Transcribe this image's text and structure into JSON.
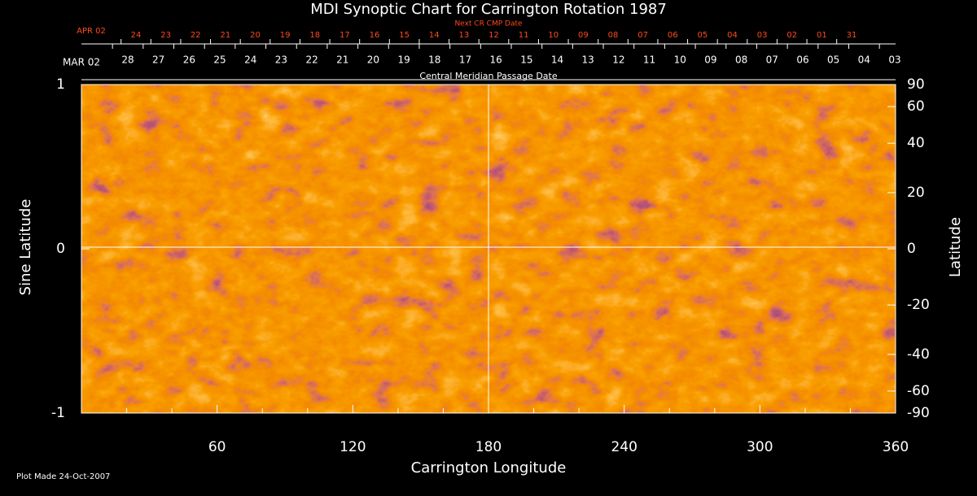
{
  "chart_data": {
    "type": "heatmap",
    "title": "MDI Synoptic Chart for Carrington Rotation 1987",
    "next_cmp_label": "Next CR CMP Date",
    "next_cmp_start": "APR 02",
    "next_cmp_dates": [
      "24",
      "23",
      "22",
      "21",
      "20",
      "19",
      "18",
      "17",
      "16",
      "15",
      "14",
      "13",
      "12",
      "11",
      "10",
      "09",
      "08",
      "07",
      "06",
      "05",
      "04",
      "03",
      "02",
      "01",
      "31"
    ],
    "next_cmp_color": "#ff4a1a",
    "cmp_label": "Central Meridian Passage Date",
    "cmp_start": "MAR 02",
    "cmp_dates": [
      "28",
      "27",
      "26",
      "25",
      "24",
      "23",
      "22",
      "21",
      "20",
      "19",
      "18",
      "17",
      "16",
      "15",
      "14",
      "13",
      "12",
      "11",
      "10",
      "09",
      "08",
      "07",
      "06",
      "05",
      "04",
      "03"
    ],
    "xlabel": "Carrington Longitude",
    "xlim": [
      0,
      360
    ],
    "xticks": [
      60,
      120,
      180,
      240,
      300,
      360
    ],
    "ylabel": "Sine Latitude",
    "ylim": [
      -1,
      1
    ],
    "yticks": [
      -1,
      0,
      1
    ],
    "y2label": "Latitude",
    "y2lim": [
      -90,
      90
    ],
    "y2ticks": [
      90,
      60,
      40,
      20,
      0,
      -20,
      -40,
      -60,
      -90
    ],
    "footnote": "Plot Made 24-Oct-2007"
  }
}
